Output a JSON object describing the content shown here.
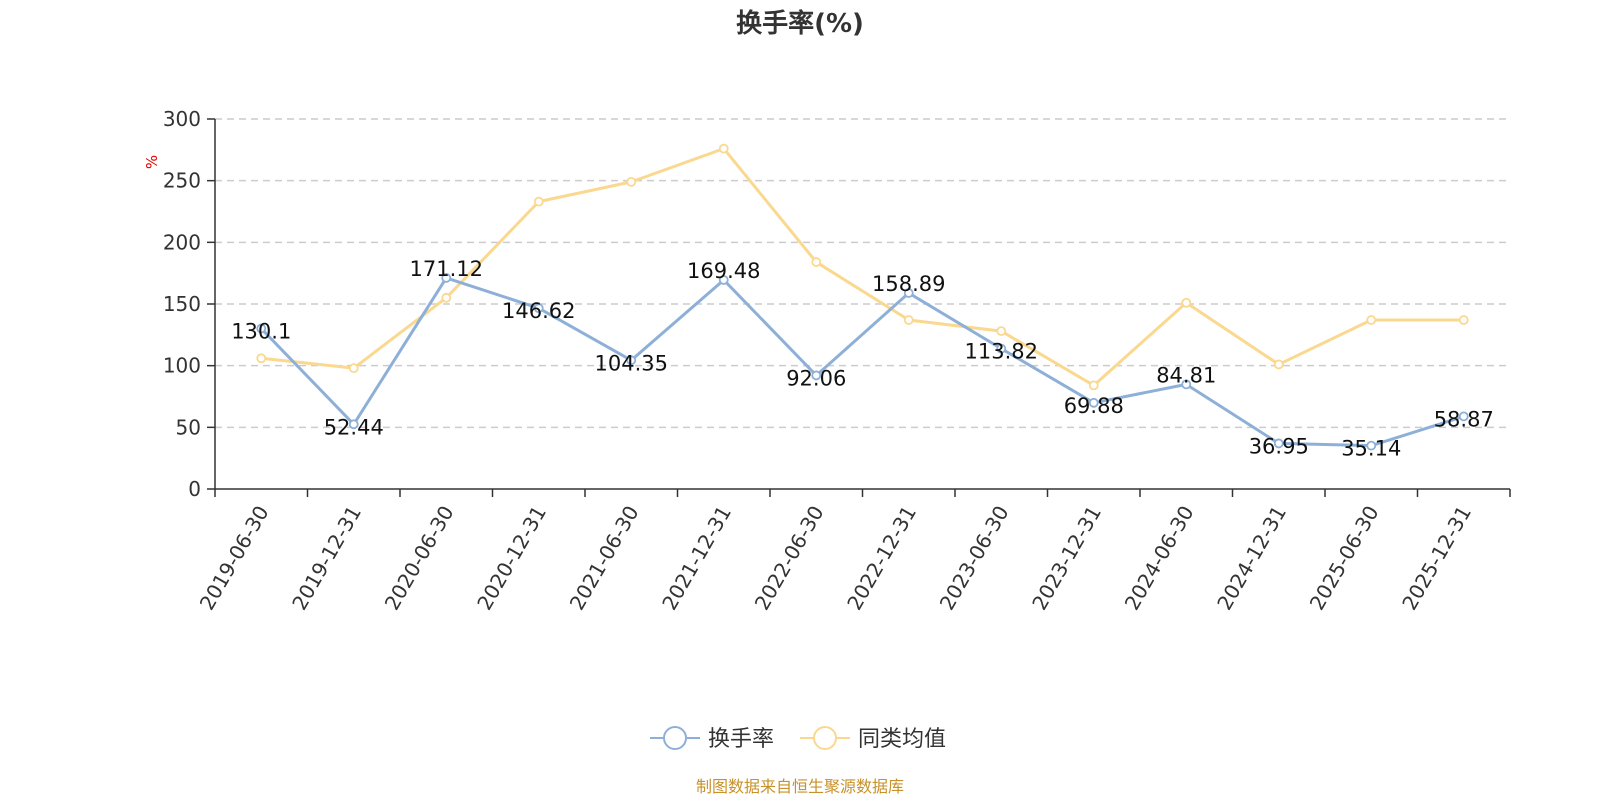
{
  "chart_data": {
    "type": "line",
    "title": "换手率(%)",
    "ylabel": "%",
    "ylim": [
      0,
      300
    ],
    "yticks": [
      0,
      50,
      100,
      150,
      200,
      250,
      300
    ],
    "grid": true,
    "legend_position": "bottom",
    "categories": [
      "2019-06-30",
      "2019-12-31",
      "2020-06-30",
      "2020-12-31",
      "2021-06-30",
      "2021-12-31",
      "2022-06-30",
      "2022-12-31",
      "2023-06-30",
      "2023-12-31",
      "2024-06-30",
      "2024-12-31",
      "2025-06-30",
      "2025-12-31"
    ],
    "series": [
      {
        "name": "换手率",
        "color": "#8eb0d8",
        "values": [
          130.1,
          52.44,
          171.12,
          146.62,
          104.35,
          169.48,
          92.06,
          158.89,
          113.82,
          69.88,
          84.81,
          36.95,
          35.14,
          58.87
        ],
        "labels": [
          "130.1",
          "52.44",
          "171.12",
          "146.62",
          "104.35",
          "169.48",
          "92.06",
          "158.89",
          "113.82",
          "69.88",
          "84.81",
          "36.95",
          "35.14",
          "58.87"
        ]
      },
      {
        "name": "同类均值",
        "color": "#fbd88f",
        "values": [
          106,
          98,
          155,
          233,
          249,
          276,
          184,
          137,
          128,
          84,
          151,
          101,
          137,
          137
        ]
      }
    ]
  },
  "source": "制图数据来自恒生聚源数据库"
}
